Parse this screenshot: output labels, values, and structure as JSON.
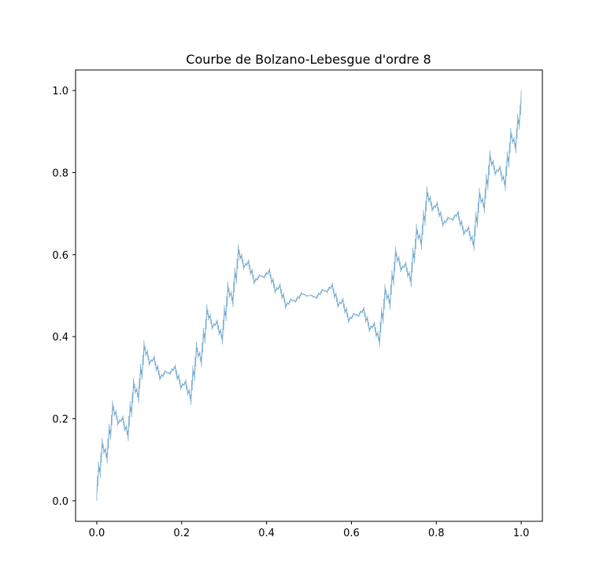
{
  "chart_data": {
    "type": "line",
    "title": "Courbe de Bolzano-Lebesgue d'ordre 8",
    "xlabel": "",
    "ylabel": "",
    "xlim": [
      -0.05,
      1.05
    ],
    "ylim": [
      -0.05,
      1.05
    ],
    "xticks": [
      0.0,
      0.2,
      0.4,
      0.6,
      0.8,
      1.0
    ],
    "yticks": [
      0.0,
      0.2,
      0.4,
      0.6,
      0.8,
      1.0
    ],
    "xtick_labels": [
      "0.0",
      "0.2",
      "0.4",
      "0.6",
      "0.8",
      "1.0"
    ],
    "ytick_labels": [
      "0.0",
      "0.2",
      "0.4",
      "0.6",
      "0.8",
      "1.0"
    ],
    "grid": false,
    "legend": "none",
    "series": [
      {
        "order": 8,
        "color": "#1f77b4",
        "line_opacity": 0.6,
        "curve": "Bolzano-Lebesgue",
        "endpoints": [
          [
            0.0,
            0.0
          ],
          [
            1.0,
            1.0
          ]
        ]
      }
    ]
  }
}
